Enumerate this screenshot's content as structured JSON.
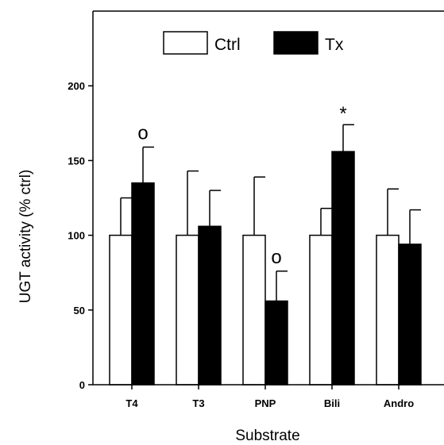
{
  "chart_data": {
    "type": "bar",
    "title": "",
    "xlabel": "Substrate",
    "ylabel": "UGT activity (% ctrl)",
    "ylim": [
      0,
      250
    ],
    "yticks": [
      0,
      50,
      100,
      150,
      200
    ],
    "categories": [
      "T4",
      "T3",
      "PNP",
      "Bili",
      "Andro"
    ],
    "series": [
      {
        "name": "Ctrl",
        "color": "#ffffff",
        "values": [
          100,
          100,
          100,
          100,
          100
        ],
        "errors": [
          25,
          43,
          39,
          18,
          31
        ]
      },
      {
        "name": "Tx",
        "color": "#000000",
        "values": [
          135,
          106,
          56,
          156,
          94
        ],
        "errors": [
          24,
          24,
          20,
          18,
          23
        ]
      }
    ],
    "annotations": [
      "o",
      "",
      "o",
      "*",
      ""
    ],
    "legend": "top",
    "grid": false
  }
}
